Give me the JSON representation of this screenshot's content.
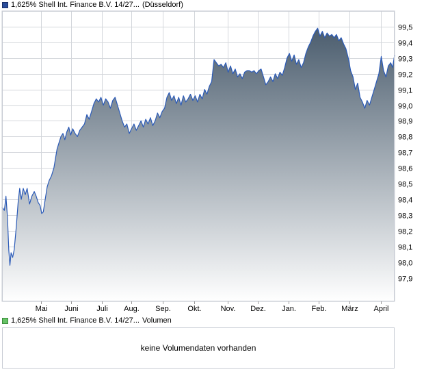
{
  "legend": {
    "price_name": "1,625% Shell Int. Finance B.V. 14/27...",
    "price_exchange": "(Düsseldorf)",
    "volume_name": "1,625% Shell Int. Finance B.V. 14/27...",
    "volume_suffix": "Volumen"
  },
  "volume_panel": {
    "message": "keine Volumendaten vorhanden"
  },
  "colors": {
    "line": "#2a5ab8",
    "area_top": "#4b5d6e",
    "area_bottom": "#ffffff",
    "grid": "#d3d6db",
    "frame": "#c8ccd4"
  },
  "chart_data": {
    "type": "area",
    "title": "",
    "xlabel": "",
    "ylabel": "",
    "ylim": [
      97.75,
      99.6
    ],
    "grid": true,
    "y_axis_side": "right",
    "y_ticks": [
      "97,9",
      "98,0",
      "98,1",
      "98,2",
      "98,3",
      "98,4",
      "98,5",
      "98,6",
      "98,7",
      "98,8",
      "98,9",
      "99,0",
      "99,1",
      "99,2",
      "99,3",
      "99,4",
      "99,5"
    ],
    "x_ticks": [
      {
        "label": "Mai",
        "t": 0.1
      },
      {
        "label": "Juni",
        "t": 0.176
      },
      {
        "label": "Juli",
        "t": 0.254
      },
      {
        "label": "Aug.",
        "t": 0.33
      },
      {
        "label": "Sep.",
        "t": 0.41
      },
      {
        "label": "Okt.",
        "t": 0.49
      },
      {
        "label": "Nov.",
        "t": 0.575
      },
      {
        "label": "Dez.",
        "t": 0.652
      },
      {
        "label": "Jan.",
        "t": 0.73
      },
      {
        "label": "Feb.",
        "t": 0.806
      },
      {
        "label": "März",
        "t": 0.885
      },
      {
        "label": "April",
        "t": 0.966
      }
    ],
    "series": [
      {
        "values": [
          [
            0.0,
            98.35
          ],
          [
            0.006,
            98.33
          ],
          [
            0.01,
            98.42
          ],
          [
            0.014,
            98.28
          ],
          [
            0.017,
            98.08
          ],
          [
            0.02,
            97.98
          ],
          [
            0.023,
            98.06
          ],
          [
            0.027,
            98.03
          ],
          [
            0.031,
            98.08
          ],
          [
            0.036,
            98.22
          ],
          [
            0.041,
            98.38
          ],
          [
            0.045,
            98.47
          ],
          [
            0.049,
            98.4
          ],
          [
            0.054,
            98.47
          ],
          [
            0.059,
            98.43
          ],
          [
            0.064,
            98.47
          ],
          [
            0.07,
            98.37
          ],
          [
            0.076,
            98.42
          ],
          [
            0.082,
            98.45
          ],
          [
            0.087,
            98.42
          ],
          [
            0.092,
            98.38
          ],
          [
            0.097,
            98.36
          ],
          [
            0.101,
            98.31
          ],
          [
            0.105,
            98.32
          ],
          [
            0.11,
            98.4
          ],
          [
            0.115,
            98.48
          ],
          [
            0.12,
            98.52
          ],
          [
            0.126,
            98.55
          ],
          [
            0.132,
            98.6
          ],
          [
            0.136,
            98.66
          ],
          [
            0.14,
            98.72
          ],
          [
            0.145,
            98.76
          ],
          [
            0.15,
            98.8
          ],
          [
            0.155,
            98.82
          ],
          [
            0.16,
            98.78
          ],
          [
            0.165,
            98.83
          ],
          [
            0.17,
            98.86
          ],
          [
            0.175,
            98.81
          ],
          [
            0.18,
            98.85
          ],
          [
            0.186,
            98.82
          ],
          [
            0.192,
            98.8
          ],
          [
            0.198,
            98.84
          ],
          [
            0.204,
            98.86
          ],
          [
            0.21,
            98.88
          ],
          [
            0.216,
            98.94
          ],
          [
            0.222,
            98.91
          ],
          [
            0.228,
            98.96
          ],
          [
            0.234,
            99.01
          ],
          [
            0.24,
            99.04
          ],
          [
            0.246,
            99.02
          ],
          [
            0.252,
            99.05
          ],
          [
            0.258,
            99.0
          ],
          [
            0.264,
            99.04
          ],
          [
            0.27,
            99.02
          ],
          [
            0.276,
            98.98
          ],
          [
            0.282,
            99.03
          ],
          [
            0.288,
            99.05
          ],
          [
            0.294,
            99.0
          ],
          [
            0.3,
            98.95
          ],
          [
            0.306,
            98.9
          ],
          [
            0.312,
            98.86
          ],
          [
            0.318,
            98.88
          ],
          [
            0.324,
            98.82
          ],
          [
            0.33,
            98.85
          ],
          [
            0.336,
            98.88
          ],
          [
            0.342,
            98.84
          ],
          [
            0.348,
            98.87
          ],
          [
            0.354,
            98.9
          ],
          [
            0.36,
            98.86
          ],
          [
            0.366,
            98.91
          ],
          [
            0.372,
            98.88
          ],
          [
            0.378,
            98.92
          ],
          [
            0.384,
            98.87
          ],
          [
            0.39,
            98.9
          ],
          [
            0.396,
            98.95
          ],
          [
            0.402,
            98.92
          ],
          [
            0.408,
            98.96
          ],
          [
            0.414,
            98.98
          ],
          [
            0.42,
            99.05
          ],
          [
            0.426,
            99.08
          ],
          [
            0.432,
            99.03
          ],
          [
            0.438,
            99.06
          ],
          [
            0.444,
            99.01
          ],
          [
            0.45,
            99.05
          ],
          [
            0.456,
            99.0
          ],
          [
            0.462,
            99.06
          ],
          [
            0.468,
            99.02
          ],
          [
            0.474,
            99.04
          ],
          [
            0.48,
            99.07
          ],
          [
            0.486,
            99.03
          ],
          [
            0.492,
            99.06
          ],
          [
            0.498,
            99.02
          ],
          [
            0.504,
            99.07
          ],
          [
            0.51,
            99.04
          ],
          [
            0.516,
            99.1
          ],
          [
            0.522,
            99.07
          ],
          [
            0.528,
            99.12
          ],
          [
            0.534,
            99.15
          ],
          [
            0.54,
            99.29
          ],
          [
            0.546,
            99.27
          ],
          [
            0.552,
            99.25
          ],
          [
            0.558,
            99.26
          ],
          [
            0.564,
            99.24
          ],
          [
            0.57,
            99.27
          ],
          [
            0.576,
            99.21
          ],
          [
            0.582,
            99.25
          ],
          [
            0.588,
            99.2
          ],
          [
            0.594,
            99.23
          ],
          [
            0.6,
            99.18
          ],
          [
            0.606,
            99.2
          ],
          [
            0.612,
            99.17
          ],
          [
            0.618,
            99.21
          ],
          [
            0.624,
            99.22
          ],
          [
            0.63,
            99.22
          ],
          [
            0.636,
            99.21
          ],
          [
            0.642,
            99.22
          ],
          [
            0.648,
            99.2
          ],
          [
            0.654,
            99.22
          ],
          [
            0.66,
            99.23
          ],
          [
            0.666,
            99.18
          ],
          [
            0.672,
            99.13
          ],
          [
            0.678,
            99.15
          ],
          [
            0.684,
            99.18
          ],
          [
            0.69,
            99.15
          ],
          [
            0.696,
            99.2
          ],
          [
            0.702,
            99.17
          ],
          [
            0.708,
            99.21
          ],
          [
            0.714,
            99.19
          ],
          [
            0.72,
            99.24
          ],
          [
            0.726,
            99.3
          ],
          [
            0.732,
            99.33
          ],
          [
            0.738,
            99.28
          ],
          [
            0.744,
            99.32
          ],
          [
            0.75,
            99.26
          ],
          [
            0.756,
            99.29
          ],
          [
            0.762,
            99.24
          ],
          [
            0.768,
            99.27
          ],
          [
            0.774,
            99.33
          ],
          [
            0.78,
            99.37
          ],
          [
            0.786,
            99.4
          ],
          [
            0.792,
            99.44
          ],
          [
            0.798,
            99.47
          ],
          [
            0.804,
            99.49
          ],
          [
            0.81,
            99.44
          ],
          [
            0.816,
            99.47
          ],
          [
            0.822,
            99.43
          ],
          [
            0.828,
            99.46
          ],
          [
            0.834,
            99.44
          ],
          [
            0.84,
            99.45
          ],
          [
            0.846,
            99.43
          ],
          [
            0.852,
            99.45
          ],
          [
            0.858,
            99.41
          ],
          [
            0.864,
            99.43
          ],
          [
            0.87,
            99.39
          ],
          [
            0.876,
            99.36
          ],
          [
            0.882,
            99.3
          ],
          [
            0.888,
            99.22
          ],
          [
            0.894,
            99.18
          ],
          [
            0.9,
            99.1
          ],
          [
            0.906,
            99.14
          ],
          [
            0.912,
            99.05
          ],
          [
            0.918,
            99.02
          ],
          [
            0.924,
            98.98
          ],
          [
            0.93,
            99.03
          ],
          [
            0.936,
            99.0
          ],
          [
            0.942,
            99.05
          ],
          [
            0.948,
            99.1
          ],
          [
            0.954,
            99.15
          ],
          [
            0.96,
            99.2
          ],
          [
            0.966,
            99.31
          ],
          [
            0.972,
            99.22
          ],
          [
            0.978,
            99.18
          ],
          [
            0.984,
            99.25
          ],
          [
            0.99,
            99.27
          ],
          [
            0.995,
            99.24
          ],
          [
            1.0,
            99.32
          ]
        ]
      }
    ]
  }
}
